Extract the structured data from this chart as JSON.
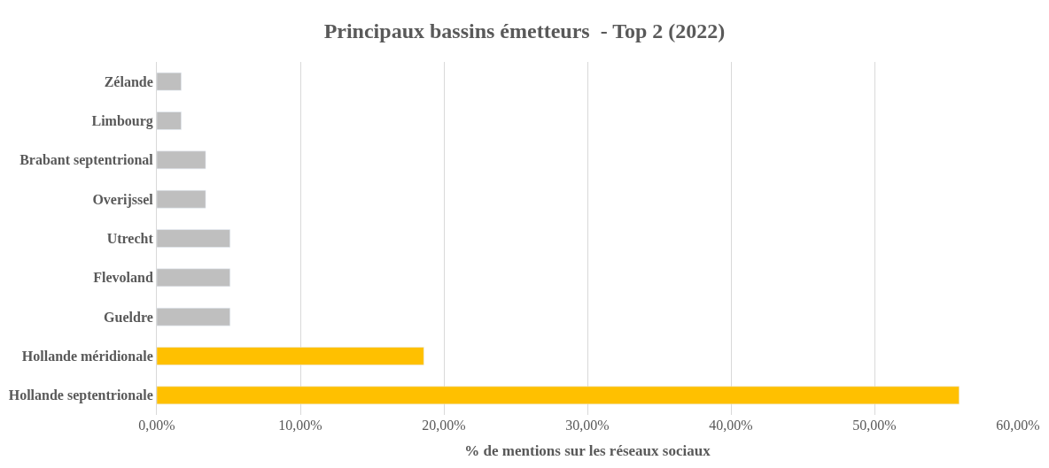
{
  "chart_data": {
    "type": "bar",
    "orientation": "horizontal",
    "title": "Principaux bassins émetteurs  - Top 2 (2022)",
    "xlabel": "% de mentions sur les réseaux sociaux",
    "categories": [
      "Zélande",
      "Limbourg",
      "Brabant septentrional",
      "Overijssel",
      "Utrecht",
      "Flevoland",
      "Gueldre",
      "Hollande méridionale",
      "Hollande septentrionale"
    ],
    "values": [
      1.7,
      1.7,
      3.4,
      3.4,
      5.1,
      5.1,
      5.1,
      18.6,
      55.9
    ],
    "colors": [
      "#bfbfbf",
      "#bfbfbf",
      "#bfbfbf",
      "#bfbfbf",
      "#bfbfbf",
      "#bfbfbf",
      "#bfbfbf",
      "#ffc000",
      "#ffc000"
    ],
    "xlim": [
      0,
      60
    ],
    "xticks": [
      {
        "value": 0,
        "label": "0,00%"
      },
      {
        "value": 10,
        "label": "10,00%"
      },
      {
        "value": 20,
        "label": "20,00%"
      },
      {
        "value": 30,
        "label": "30,00%"
      },
      {
        "value": 40,
        "label": "40,00%"
      },
      {
        "value": 50,
        "label": "50,00%"
      },
      {
        "value": 60,
        "label": "60,00%"
      }
    ],
    "grid": "x",
    "legend": false
  }
}
